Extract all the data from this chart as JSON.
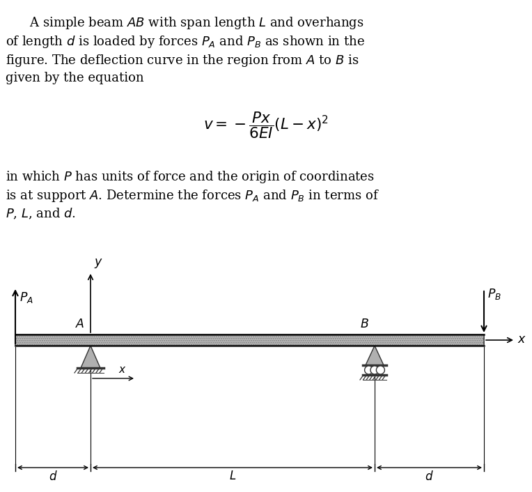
{
  "fig_width": 7.64,
  "fig_height": 7.06,
  "dpi": 100,
  "text_color": "#000000",
  "background_color": "#ffffff",
  "beam_color": "#c0c0c0",
  "beam_edge_color": "#222222",
  "support_color": "#b0b0b0",
  "support_edge_color": "#333333",
  "line_color": "#222222",
  "title_lines": [
    "      A simple beam $\\mathit{AB}$ with span length $\\mathit{L}$ and overhangs",
    "of length $\\mathit{d}$ is loaded by forces $P_A$ and $P_B$ as shown in the",
    "figure. The deflection curve in the region from $\\mathit{A}$ to $\\mathit{B}$ is",
    "given by the equation"
  ],
  "footer_lines": [
    "in which $\\mathit{P}$ has units of force and the origin of coordinates",
    "is at support $\\mathit{A}$. Determine the forces $P_A$ and $P_B$ in terms of",
    "$\\mathit{P}$, $\\mathit{L}$, and $\\mathit{d}$."
  ],
  "equation": "$v = -\\dfrac{Px}{6EI}(L - x)^2$",
  "fontsize_text": 13.0,
  "fontsize_eq": 15.5,
  "fontsize_label": 12.5,
  "fontsize_dim": 12.0
}
